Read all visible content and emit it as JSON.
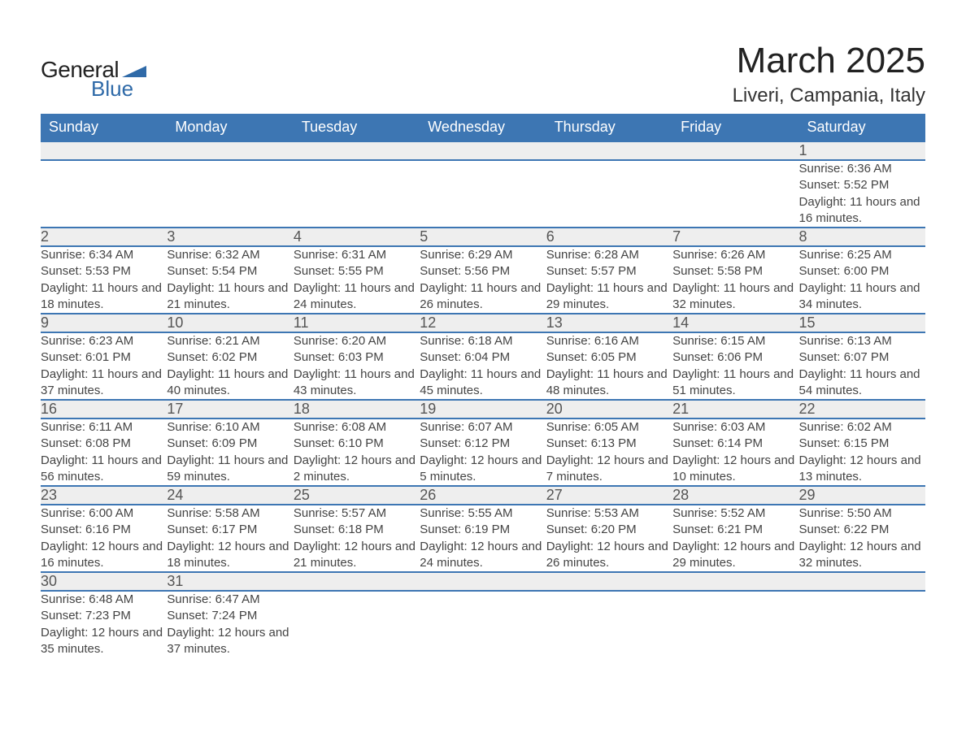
{
  "logo": {
    "word1": "General",
    "word2": "Blue",
    "brand_color": "#2f6aa8"
  },
  "title": "March 2025",
  "location": "Liveri, Campania, Italy",
  "colors": {
    "header_bg": "#3d76b3",
    "header_text": "#ffffff",
    "daynum_bg": "#eeeeee",
    "border": "#3d76b3",
    "body_text": "#444444"
  },
  "fonts": {
    "title_size_pt": 33,
    "location_size_pt": 18,
    "dayheader_size_pt": 14,
    "daynum_size_pt": 14,
    "detail_size_pt": 11
  },
  "day_headers": [
    "Sunday",
    "Monday",
    "Tuesday",
    "Wednesday",
    "Thursday",
    "Friday",
    "Saturday"
  ],
  "weeks": [
    [
      null,
      null,
      null,
      null,
      null,
      null,
      {
        "n": "1",
        "sr": "6:36 AM",
        "ss": "5:52 PM",
        "dl": "11 hours and 16 minutes."
      }
    ],
    [
      {
        "n": "2",
        "sr": "6:34 AM",
        "ss": "5:53 PM",
        "dl": "11 hours and 18 minutes."
      },
      {
        "n": "3",
        "sr": "6:32 AM",
        "ss": "5:54 PM",
        "dl": "11 hours and 21 minutes."
      },
      {
        "n": "4",
        "sr": "6:31 AM",
        "ss": "5:55 PM",
        "dl": "11 hours and 24 minutes."
      },
      {
        "n": "5",
        "sr": "6:29 AM",
        "ss": "5:56 PM",
        "dl": "11 hours and 26 minutes."
      },
      {
        "n": "6",
        "sr": "6:28 AM",
        "ss": "5:57 PM",
        "dl": "11 hours and 29 minutes."
      },
      {
        "n": "7",
        "sr": "6:26 AM",
        "ss": "5:58 PM",
        "dl": "11 hours and 32 minutes."
      },
      {
        "n": "8",
        "sr": "6:25 AM",
        "ss": "6:00 PM",
        "dl": "11 hours and 34 minutes."
      }
    ],
    [
      {
        "n": "9",
        "sr": "6:23 AM",
        "ss": "6:01 PM",
        "dl": "11 hours and 37 minutes."
      },
      {
        "n": "10",
        "sr": "6:21 AM",
        "ss": "6:02 PM",
        "dl": "11 hours and 40 minutes."
      },
      {
        "n": "11",
        "sr": "6:20 AM",
        "ss": "6:03 PM",
        "dl": "11 hours and 43 minutes."
      },
      {
        "n": "12",
        "sr": "6:18 AM",
        "ss": "6:04 PM",
        "dl": "11 hours and 45 minutes."
      },
      {
        "n": "13",
        "sr": "6:16 AM",
        "ss": "6:05 PM",
        "dl": "11 hours and 48 minutes."
      },
      {
        "n": "14",
        "sr": "6:15 AM",
        "ss": "6:06 PM",
        "dl": "11 hours and 51 minutes."
      },
      {
        "n": "15",
        "sr": "6:13 AM",
        "ss": "6:07 PM",
        "dl": "11 hours and 54 minutes."
      }
    ],
    [
      {
        "n": "16",
        "sr": "6:11 AM",
        "ss": "6:08 PM",
        "dl": "11 hours and 56 minutes."
      },
      {
        "n": "17",
        "sr": "6:10 AM",
        "ss": "6:09 PM",
        "dl": "11 hours and 59 minutes."
      },
      {
        "n": "18",
        "sr": "6:08 AM",
        "ss": "6:10 PM",
        "dl": "12 hours and 2 minutes."
      },
      {
        "n": "19",
        "sr": "6:07 AM",
        "ss": "6:12 PM",
        "dl": "12 hours and 5 minutes."
      },
      {
        "n": "20",
        "sr": "6:05 AM",
        "ss": "6:13 PM",
        "dl": "12 hours and 7 minutes."
      },
      {
        "n": "21",
        "sr": "6:03 AM",
        "ss": "6:14 PM",
        "dl": "12 hours and 10 minutes."
      },
      {
        "n": "22",
        "sr": "6:02 AM",
        "ss": "6:15 PM",
        "dl": "12 hours and 13 minutes."
      }
    ],
    [
      {
        "n": "23",
        "sr": "6:00 AM",
        "ss": "6:16 PM",
        "dl": "12 hours and 16 minutes."
      },
      {
        "n": "24",
        "sr": "5:58 AM",
        "ss": "6:17 PM",
        "dl": "12 hours and 18 minutes."
      },
      {
        "n": "25",
        "sr": "5:57 AM",
        "ss": "6:18 PM",
        "dl": "12 hours and 21 minutes."
      },
      {
        "n": "26",
        "sr": "5:55 AM",
        "ss": "6:19 PM",
        "dl": "12 hours and 24 minutes."
      },
      {
        "n": "27",
        "sr": "5:53 AM",
        "ss": "6:20 PM",
        "dl": "12 hours and 26 minutes."
      },
      {
        "n": "28",
        "sr": "5:52 AM",
        "ss": "6:21 PM",
        "dl": "12 hours and 29 minutes."
      },
      {
        "n": "29",
        "sr": "5:50 AM",
        "ss": "6:22 PM",
        "dl": "12 hours and 32 minutes."
      }
    ],
    [
      {
        "n": "30",
        "sr": "6:48 AM",
        "ss": "7:23 PM",
        "dl": "12 hours and 35 minutes."
      },
      {
        "n": "31",
        "sr": "6:47 AM",
        "ss": "7:24 PM",
        "dl": "12 hours and 37 minutes."
      },
      null,
      null,
      null,
      null,
      null
    ]
  ],
  "labels": {
    "sunrise": "Sunrise: ",
    "sunset": "Sunset: ",
    "daylight": "Daylight: "
  }
}
